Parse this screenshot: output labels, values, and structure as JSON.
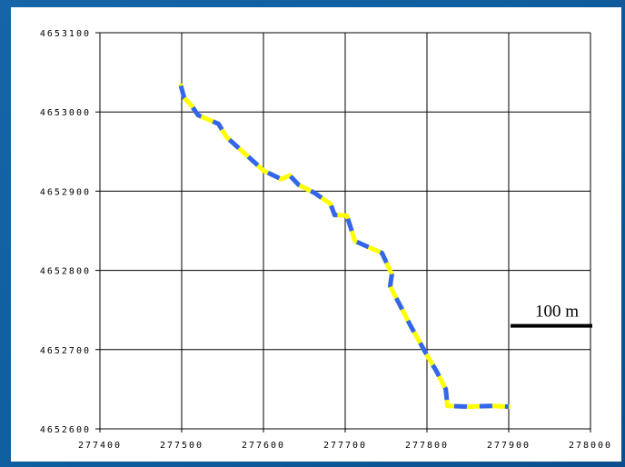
{
  "chart_data": {
    "type": "line",
    "title": "",
    "xlabel": "",
    "ylabel": "",
    "xlim": [
      277400,
      278000
    ],
    "ylim": [
      4652600,
      4653100
    ],
    "x_ticks": [
      "277400",
      "277500",
      "277600",
      "277700",
      "277800",
      "277900",
      "278000"
    ],
    "y_ticks": [
      "4652600",
      "4652700",
      "4652800",
      "4652900",
      "4653000",
      "4653100"
    ],
    "grid": true,
    "line_colors": {
      "dash_a": "#ffff00",
      "dash_b": "#3366ee"
    },
    "series": [
      {
        "x": [
          277499,
          277503,
          277512,
          277520,
          277545,
          277555,
          277580,
          277600,
          277622,
          277632,
          277643,
          277662,
          277682,
          277687,
          277702,
          277712,
          277727,
          277745,
          277757,
          277755,
          277765,
          277780,
          277800,
          277812,
          277823,
          277825,
          277850,
          277880,
          277900
        ],
        "y": [
          4653033,
          4653018,
          4653008,
          4652996,
          4652985,
          4652968,
          4652945,
          4652926,
          4652915,
          4652920,
          4652908,
          4652898,
          4652884,
          4652870,
          4652869,
          4652837,
          4652830,
          4652822,
          4652795,
          4652780,
          4652760,
          4652730,
          4652693,
          4652672,
          4652650,
          4652629,
          4652628,
          4652629,
          4652628
        ]
      }
    ],
    "scale_bar": {
      "label": "100 m",
      "length": 100
    }
  }
}
